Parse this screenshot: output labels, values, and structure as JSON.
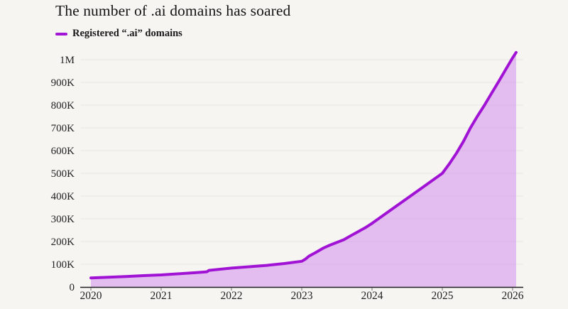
{
  "page": {
    "background": "#f6f5f2"
  },
  "header": {
    "title": "The number of .ai domains has soared"
  },
  "legend": {
    "label": "Registered “.ai” domains",
    "swatch_color": "#a315d6"
  },
  "chart_data": {
    "type": "area",
    "title": "The number of .ai domains has soared",
    "xlabel": "",
    "ylabel": "",
    "legend_position": "top-left",
    "grid": true,
    "line_color": "#a113d4",
    "fill_color": "#cc7bee",
    "fill_opacity": 0.45,
    "x_range": [
      2020,
      2026.05
    ],
    "y_range_thousands": [
      0,
      1030
    ],
    "x_ticks": [
      2020,
      2021,
      2022,
      2023,
      2024,
      2025,
      2026
    ],
    "y_ticks": [
      {
        "v": 0,
        "label": "0"
      },
      {
        "v": 100,
        "label": "100K"
      },
      {
        "v": 200,
        "label": "200K"
      },
      {
        "v": 300,
        "label": "300K"
      },
      {
        "v": 400,
        "label": "400K"
      },
      {
        "v": 500,
        "label": "500K"
      },
      {
        "v": 600,
        "label": "600K"
      },
      {
        "v": 700,
        "label": "700K"
      },
      {
        "v": 800,
        "label": "800K"
      },
      {
        "v": 900,
        "label": "900K"
      },
      {
        "v": 1000,
        "label": "1M"
      }
    ],
    "series": [
      {
        "name": "Registered “.ai” domains",
        "points_year_thousands": [
          [
            2020.0,
            40
          ],
          [
            2020.25,
            43
          ],
          [
            2020.5,
            46
          ],
          [
            2020.75,
            50
          ],
          [
            2021.0,
            53
          ],
          [
            2021.25,
            58
          ],
          [
            2021.5,
            63
          ],
          [
            2021.65,
            67
          ],
          [
            2021.68,
            73
          ],
          [
            2022.0,
            83
          ],
          [
            2022.25,
            89
          ],
          [
            2022.5,
            95
          ],
          [
            2022.75,
            103
          ],
          [
            2023.0,
            113
          ],
          [
            2023.05,
            122
          ],
          [
            2023.1,
            135
          ],
          [
            2023.2,
            152
          ],
          [
            2023.3,
            170
          ],
          [
            2023.4,
            184
          ],
          [
            2023.5,
            196
          ],
          [
            2023.6,
            208
          ],
          [
            2023.7,
            226
          ],
          [
            2023.8,
            243
          ],
          [
            2023.9,
            260
          ],
          [
            2024.0,
            280
          ],
          [
            2024.25,
            335
          ],
          [
            2024.5,
            390
          ],
          [
            2024.75,
            445
          ],
          [
            2025.0,
            500
          ],
          [
            2025.1,
            542
          ],
          [
            2025.2,
            588
          ],
          [
            2025.3,
            640
          ],
          [
            2025.4,
            700
          ],
          [
            2025.5,
            752
          ],
          [
            2025.6,
            800
          ],
          [
            2025.7,
            852
          ],
          [
            2025.8,
            903
          ],
          [
            2025.9,
            956
          ],
          [
            2026.0,
            1008
          ],
          [
            2026.05,
            1032
          ]
        ]
      }
    ]
  }
}
